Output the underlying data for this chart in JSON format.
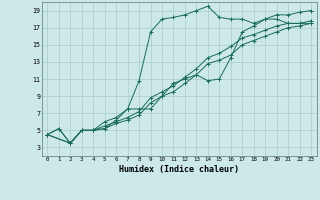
{
  "xlabel": "Humidex (Indice chaleur)",
  "bg_color": "#cce8e8",
  "grid_color": "#aacccc",
  "line_color": "#1a6b5a",
  "xlim": [
    -0.5,
    23.5
  ],
  "ylim": [
    2,
    20
  ],
  "xticks": [
    0,
    1,
    2,
    3,
    4,
    5,
    6,
    7,
    8,
    9,
    10,
    11,
    12,
    13,
    14,
    15,
    16,
    17,
    18,
    19,
    20,
    21,
    22,
    23
  ],
  "yticks": [
    3,
    5,
    7,
    9,
    11,
    13,
    15,
    17,
    19
  ],
  "line1_x": [
    0,
    1,
    2,
    3,
    4,
    5,
    6,
    7,
    8,
    9,
    10,
    11,
    12,
    13,
    14,
    15,
    16,
    17,
    18,
    19,
    20,
    21,
    22,
    23
  ],
  "line1_y": [
    4.5,
    5.2,
    3.5,
    5.0,
    5.0,
    6.0,
    6.5,
    7.5,
    10.8,
    16.5,
    18.0,
    18.2,
    18.5,
    19.0,
    19.5,
    18.2,
    18.0,
    18.0,
    17.5,
    18.0,
    18.0,
    17.5,
    17.5,
    17.5
  ],
  "line2_x": [
    0,
    1,
    2,
    3,
    4,
    5,
    6,
    7,
    8,
    9,
    10,
    11,
    12,
    13,
    14,
    15,
    16,
    17,
    18,
    19,
    20,
    21,
    22,
    23
  ],
  "line2_y": [
    4.5,
    5.2,
    3.5,
    5.0,
    5.0,
    5.2,
    6.2,
    7.5,
    7.5,
    7.5,
    9.0,
    10.5,
    11.0,
    11.5,
    10.8,
    11.0,
    13.5,
    16.5,
    17.2,
    18.0,
    18.5,
    18.5,
    18.8,
    19.0
  ],
  "line3_x": [
    0,
    2,
    3,
    4,
    5,
    6,
    7,
    8,
    9,
    10,
    11,
    12,
    13,
    14,
    15,
    16,
    17,
    18,
    19,
    20,
    21,
    22,
    23
  ],
  "line3_y": [
    4.5,
    3.5,
    5.0,
    5.0,
    5.5,
    6.0,
    6.5,
    7.2,
    8.8,
    9.5,
    10.2,
    11.2,
    12.2,
    13.5,
    14.0,
    14.8,
    15.8,
    16.2,
    16.7,
    17.2,
    17.5,
    17.5,
    17.8
  ],
  "line4_x": [
    0,
    2,
    3,
    4,
    5,
    6,
    7,
    8,
    9,
    10,
    11,
    12,
    13,
    14,
    15,
    16,
    17,
    18,
    19,
    20,
    21,
    22,
    23
  ],
  "line4_y": [
    4.5,
    3.5,
    5.0,
    5.0,
    5.2,
    5.8,
    6.2,
    6.8,
    8.2,
    9.0,
    9.5,
    10.5,
    11.5,
    12.8,
    13.2,
    13.8,
    15.0,
    15.5,
    16.0,
    16.5,
    17.0,
    17.2,
    17.5
  ]
}
